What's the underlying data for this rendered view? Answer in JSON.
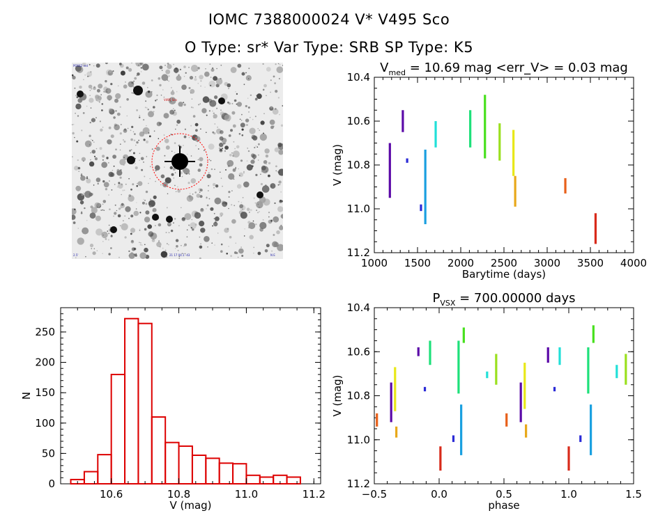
{
  "header": {
    "title_line1": "IOMC 7388000024    V* V495 Sco",
    "title_line2": "O Type: sr*  Var Type: SRB  SP Type: K5"
  },
  "colors": {
    "histogram": "#dd0000",
    "circle": "#ff0000",
    "phase_palette": [
      "#5b0aa8",
      "#2b2bd6",
      "#1aa0e0",
      "#21e0d8",
      "#1ee07a",
      "#48e01e",
      "#9ae01e",
      "#e8e818",
      "#e8a81a",
      "#e8601a",
      "#d82a1a"
    ]
  },
  "finder_image": {
    "description_icon": "star-field-image",
    "top_left_label": "POSS2 red",
    "top_center_label": "V495 Sco",
    "bottom_left_label": "2.5'",
    "bottom_center_label": "21 17 04.1 -43",
    "bottom_right_label": "N E"
  },
  "chart_data": [
    {
      "type": "scatter",
      "id": "lightcurve",
      "title": "V_med = 10.69 mag <err_V> = 0.03 mag",
      "title_main": "V",
      "title_sub": "med",
      "title_rest": " = 10.69 mag <err_V> = 0.03 mag",
      "xlabel": "Barytime (days)",
      "ylabel": "V (mag)",
      "xlim": [
        1000,
        4000
      ],
      "ylim": [
        11.2,
        10.4
      ],
      "y_inverted": true,
      "xticks": [
        "1000",
        "1500",
        "2000",
        "2500",
        "3000",
        "3500",
        "4000"
      ],
      "yticks": [
        "10.4",
        "10.6",
        "10.8",
        "11.0",
        "11.2"
      ],
      "segments": [
        {
          "x": 1180,
          "y_top": 10.7,
          "y_bottom": 10.95,
          "color": "#5b0aa8"
        },
        {
          "x": 1330,
          "y_top": 10.55,
          "y_bottom": 10.65,
          "color": "#5b0aa8"
        },
        {
          "x": 1380,
          "y_top": 10.77,
          "y_bottom": 10.79,
          "color": "#2b2bd6"
        },
        {
          "x": 1540,
          "y_top": 10.98,
          "y_bottom": 11.01,
          "color": "#2b2bd6"
        },
        {
          "x": 1590,
          "y_top": 10.73,
          "y_bottom": 11.07,
          "color": "#1aa0e0"
        },
        {
          "x": 1710,
          "y_top": 10.6,
          "y_bottom": 10.72,
          "color": "#21e0d8"
        },
        {
          "x": 2110,
          "y_top": 10.55,
          "y_bottom": 10.72,
          "color": "#1ee07a"
        },
        {
          "x": 2280,
          "y_top": 10.48,
          "y_bottom": 10.77,
          "color": "#48e01e"
        },
        {
          "x": 2450,
          "y_top": 10.61,
          "y_bottom": 10.78,
          "color": "#9ae01e"
        },
        {
          "x": 2610,
          "y_top": 10.64,
          "y_bottom": 10.85,
          "color": "#e8e818"
        },
        {
          "x": 2630,
          "y_top": 10.85,
          "y_bottom": 10.99,
          "color": "#e8a81a"
        },
        {
          "x": 3210,
          "y_top": 10.86,
          "y_bottom": 10.93,
          "color": "#e8601a"
        },
        {
          "x": 3560,
          "y_top": 11.02,
          "y_bottom": 11.16,
          "color": "#d82a1a"
        }
      ]
    },
    {
      "type": "bar",
      "id": "histogram",
      "title": "",
      "xlabel": "V (mag)",
      "ylabel": "N",
      "xlim": [
        10.45,
        11.22
      ],
      "ylim": [
        0,
        290
      ],
      "xticks": [
        "10.6",
        "10.8",
        "11.0",
        "11.2"
      ],
      "yticks": [
        "0",
        "50",
        "100",
        "150",
        "200",
        "250"
      ],
      "bin_width": 0.04,
      "bin_left_edges": [
        10.48,
        10.52,
        10.56,
        10.6,
        10.64,
        10.68,
        10.72,
        10.76,
        10.8,
        10.84,
        10.88,
        10.92,
        10.96,
        11.0,
        11.04,
        11.08,
        11.12
      ],
      "values": [
        7,
        20,
        48,
        180,
        272,
        264,
        110,
        68,
        62,
        47,
        42,
        34,
        33,
        14,
        11,
        14,
        11
      ]
    },
    {
      "type": "scatter",
      "id": "phased",
      "title": "P_vsx = 700.00000 days",
      "title_main": "P",
      "title_sub": "VSX",
      "title_rest": " = 700.00000 days",
      "xlabel": "phase",
      "ylabel": "V (mag)",
      "xlim": [
        -0.5,
        1.5
      ],
      "ylim": [
        11.2,
        10.4
      ],
      "y_inverted": true,
      "xticks": [
        "−0.5",
        "0.0",
        "0.5",
        "1.0",
        "1.5"
      ],
      "yticks": [
        "10.4",
        "10.6",
        "10.8",
        "11.0",
        "11.2"
      ],
      "segments": [
        {
          "x": -0.48,
          "y_top": 10.88,
          "y_bottom": 10.94,
          "color": "#e8601a"
        },
        {
          "x": -0.37,
          "y_top": 10.74,
          "y_bottom": 10.92,
          "color": "#5b0aa8"
        },
        {
          "x": -0.34,
          "y_top": 10.67,
          "y_bottom": 10.87,
          "color": "#e8e818"
        },
        {
          "x": -0.33,
          "y_top": 10.94,
          "y_bottom": 10.99,
          "color": "#e8a81a"
        },
        {
          "x": -0.16,
          "y_top": 10.58,
          "y_bottom": 10.62,
          "color": "#5b0aa8"
        },
        {
          "x": -0.11,
          "y_top": 10.76,
          "y_bottom": 10.78,
          "color": "#2b2bd6"
        },
        {
          "x": -0.07,
          "y_top": 10.55,
          "y_bottom": 10.66,
          "color": "#1ee07a"
        },
        {
          "x": 0.01,
          "y_top": 11.03,
          "y_bottom": 11.14,
          "color": "#d82a1a"
        },
        {
          "x": 0.11,
          "y_top": 10.98,
          "y_bottom": 11.01,
          "color": "#2b2bd6"
        },
        {
          "x": 0.15,
          "y_top": 10.55,
          "y_bottom": 10.79,
          "color": "#1ee07a"
        },
        {
          "x": 0.17,
          "y_top": 10.84,
          "y_bottom": 11.07,
          "color": "#1aa0e0"
        },
        {
          "x": 0.19,
          "y_top": 10.49,
          "y_bottom": 10.56,
          "color": "#48e01e"
        },
        {
          "x": 0.37,
          "y_top": 10.69,
          "y_bottom": 10.72,
          "color": "#21e0d8"
        },
        {
          "x": 0.44,
          "y_top": 10.61,
          "y_bottom": 10.75,
          "color": "#9ae01e"
        },
        {
          "x": 0.52,
          "y_top": 10.88,
          "y_bottom": 10.94,
          "color": "#e8601a"
        },
        {
          "x": 0.63,
          "y_top": 10.74,
          "y_bottom": 10.92,
          "color": "#5b0aa8"
        },
        {
          "x": 0.66,
          "y_top": 10.65,
          "y_bottom": 10.86,
          "color": "#e8e818"
        },
        {
          "x": 0.67,
          "y_top": 10.93,
          "y_bottom": 10.99,
          "color": "#e8a81a"
        },
        {
          "x": 0.84,
          "y_top": 10.58,
          "y_bottom": 10.65,
          "color": "#5b0aa8"
        },
        {
          "x": 0.89,
          "y_top": 10.76,
          "y_bottom": 10.78,
          "color": "#2b2bd6"
        },
        {
          "x": 0.93,
          "y_top": 10.58,
          "y_bottom": 10.66,
          "color": "#21e0d8"
        },
        {
          "x": 1.0,
          "y_top": 11.03,
          "y_bottom": 11.14,
          "color": "#d82a1a"
        },
        {
          "x": 1.09,
          "y_top": 10.98,
          "y_bottom": 11.01,
          "color": "#2b2bd6"
        },
        {
          "x": 1.15,
          "y_top": 10.58,
          "y_bottom": 10.79,
          "color": "#1ee07a"
        },
        {
          "x": 1.17,
          "y_top": 10.84,
          "y_bottom": 11.07,
          "color": "#1aa0e0"
        },
        {
          "x": 1.19,
          "y_top": 10.48,
          "y_bottom": 10.56,
          "color": "#48e01e"
        },
        {
          "x": 1.37,
          "y_top": 10.66,
          "y_bottom": 10.72,
          "color": "#21e0d8"
        },
        {
          "x": 1.44,
          "y_top": 10.61,
          "y_bottom": 10.75,
          "color": "#9ae01e"
        }
      ]
    }
  ]
}
